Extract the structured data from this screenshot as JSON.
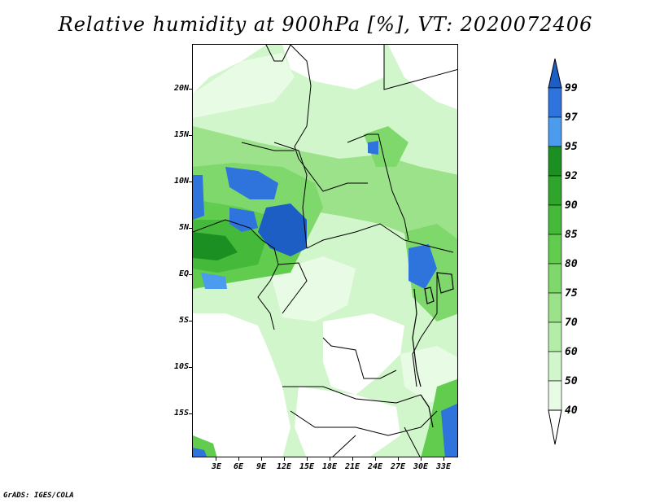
{
  "title": "Relative humidity at 900hPa [%], VT: 2020072406",
  "credit": "GrADS: IGES/COLA",
  "map": {
    "lat_labels": [
      "20N",
      "15N",
      "10N",
      "5N",
      "EQ",
      "5S",
      "10S",
      "15S"
    ],
    "lon_labels": [
      "3E",
      "6E",
      "9E",
      "12E",
      "15E",
      "18E",
      "21E",
      "24E",
      "27E",
      "30E",
      "33E"
    ]
  },
  "colorbar": {
    "labels": [
      "99",
      "97",
      "95",
      "92",
      "90",
      "85",
      "80",
      "75",
      "70",
      "60",
      "50",
      "40"
    ],
    "colors": {
      "below_40": "#ffffff",
      "40_50": "#e8fbe4",
      "50_60": "#d2f6cb",
      "60_70": "#b4eda8",
      "70_75": "#9be28a",
      "75_80": "#7fd86b",
      "80_85": "#61cc4e",
      "85_90": "#45b93a",
      "90_92": "#2fa52c",
      "92_95": "#1c8f22",
      "95_97": "#4b9bef",
      "97_99": "#2f73dc",
      "above_99": "#1c5ec4"
    }
  }
}
